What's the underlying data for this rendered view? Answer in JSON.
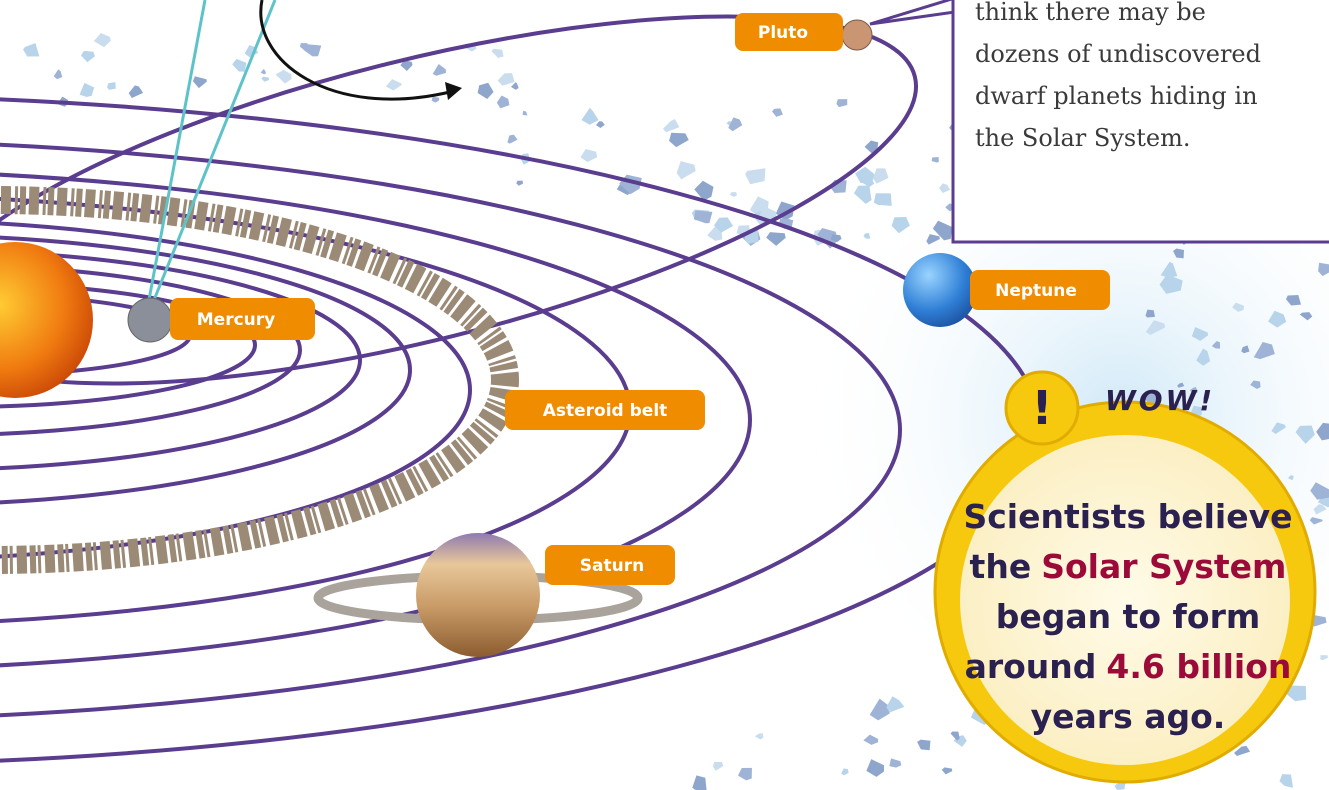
{
  "labels": [
    {
      "text": "Pluto"
    },
    {
      "text": "Mercury"
    },
    {
      "text": "Neptune"
    },
    {
      "text": "Asteroid belt"
    },
    {
      "text": "Saturn"
    }
  ],
  "callout": {
    "lines": [
      "think there may be",
      "dozens of undiscovered",
      "dwarf planets hiding in",
      "the Solar System."
    ]
  },
  "wow": {
    "icon": "!",
    "badge": "WOW!",
    "lines": [
      [
        {
          "text": "Scientists believe"
        }
      ],
      [
        {
          "text": "the"
        },
        {
          "text": "Solar System",
          "highlight": true
        }
      ],
      [
        {
          "text": "began to form"
        }
      ],
      [
        {
          "text": "around"
        },
        {
          "text": "4.6 billion",
          "highlight": true
        }
      ],
      [
        {
          "text": "years ago."
        }
      ]
    ]
  }
}
